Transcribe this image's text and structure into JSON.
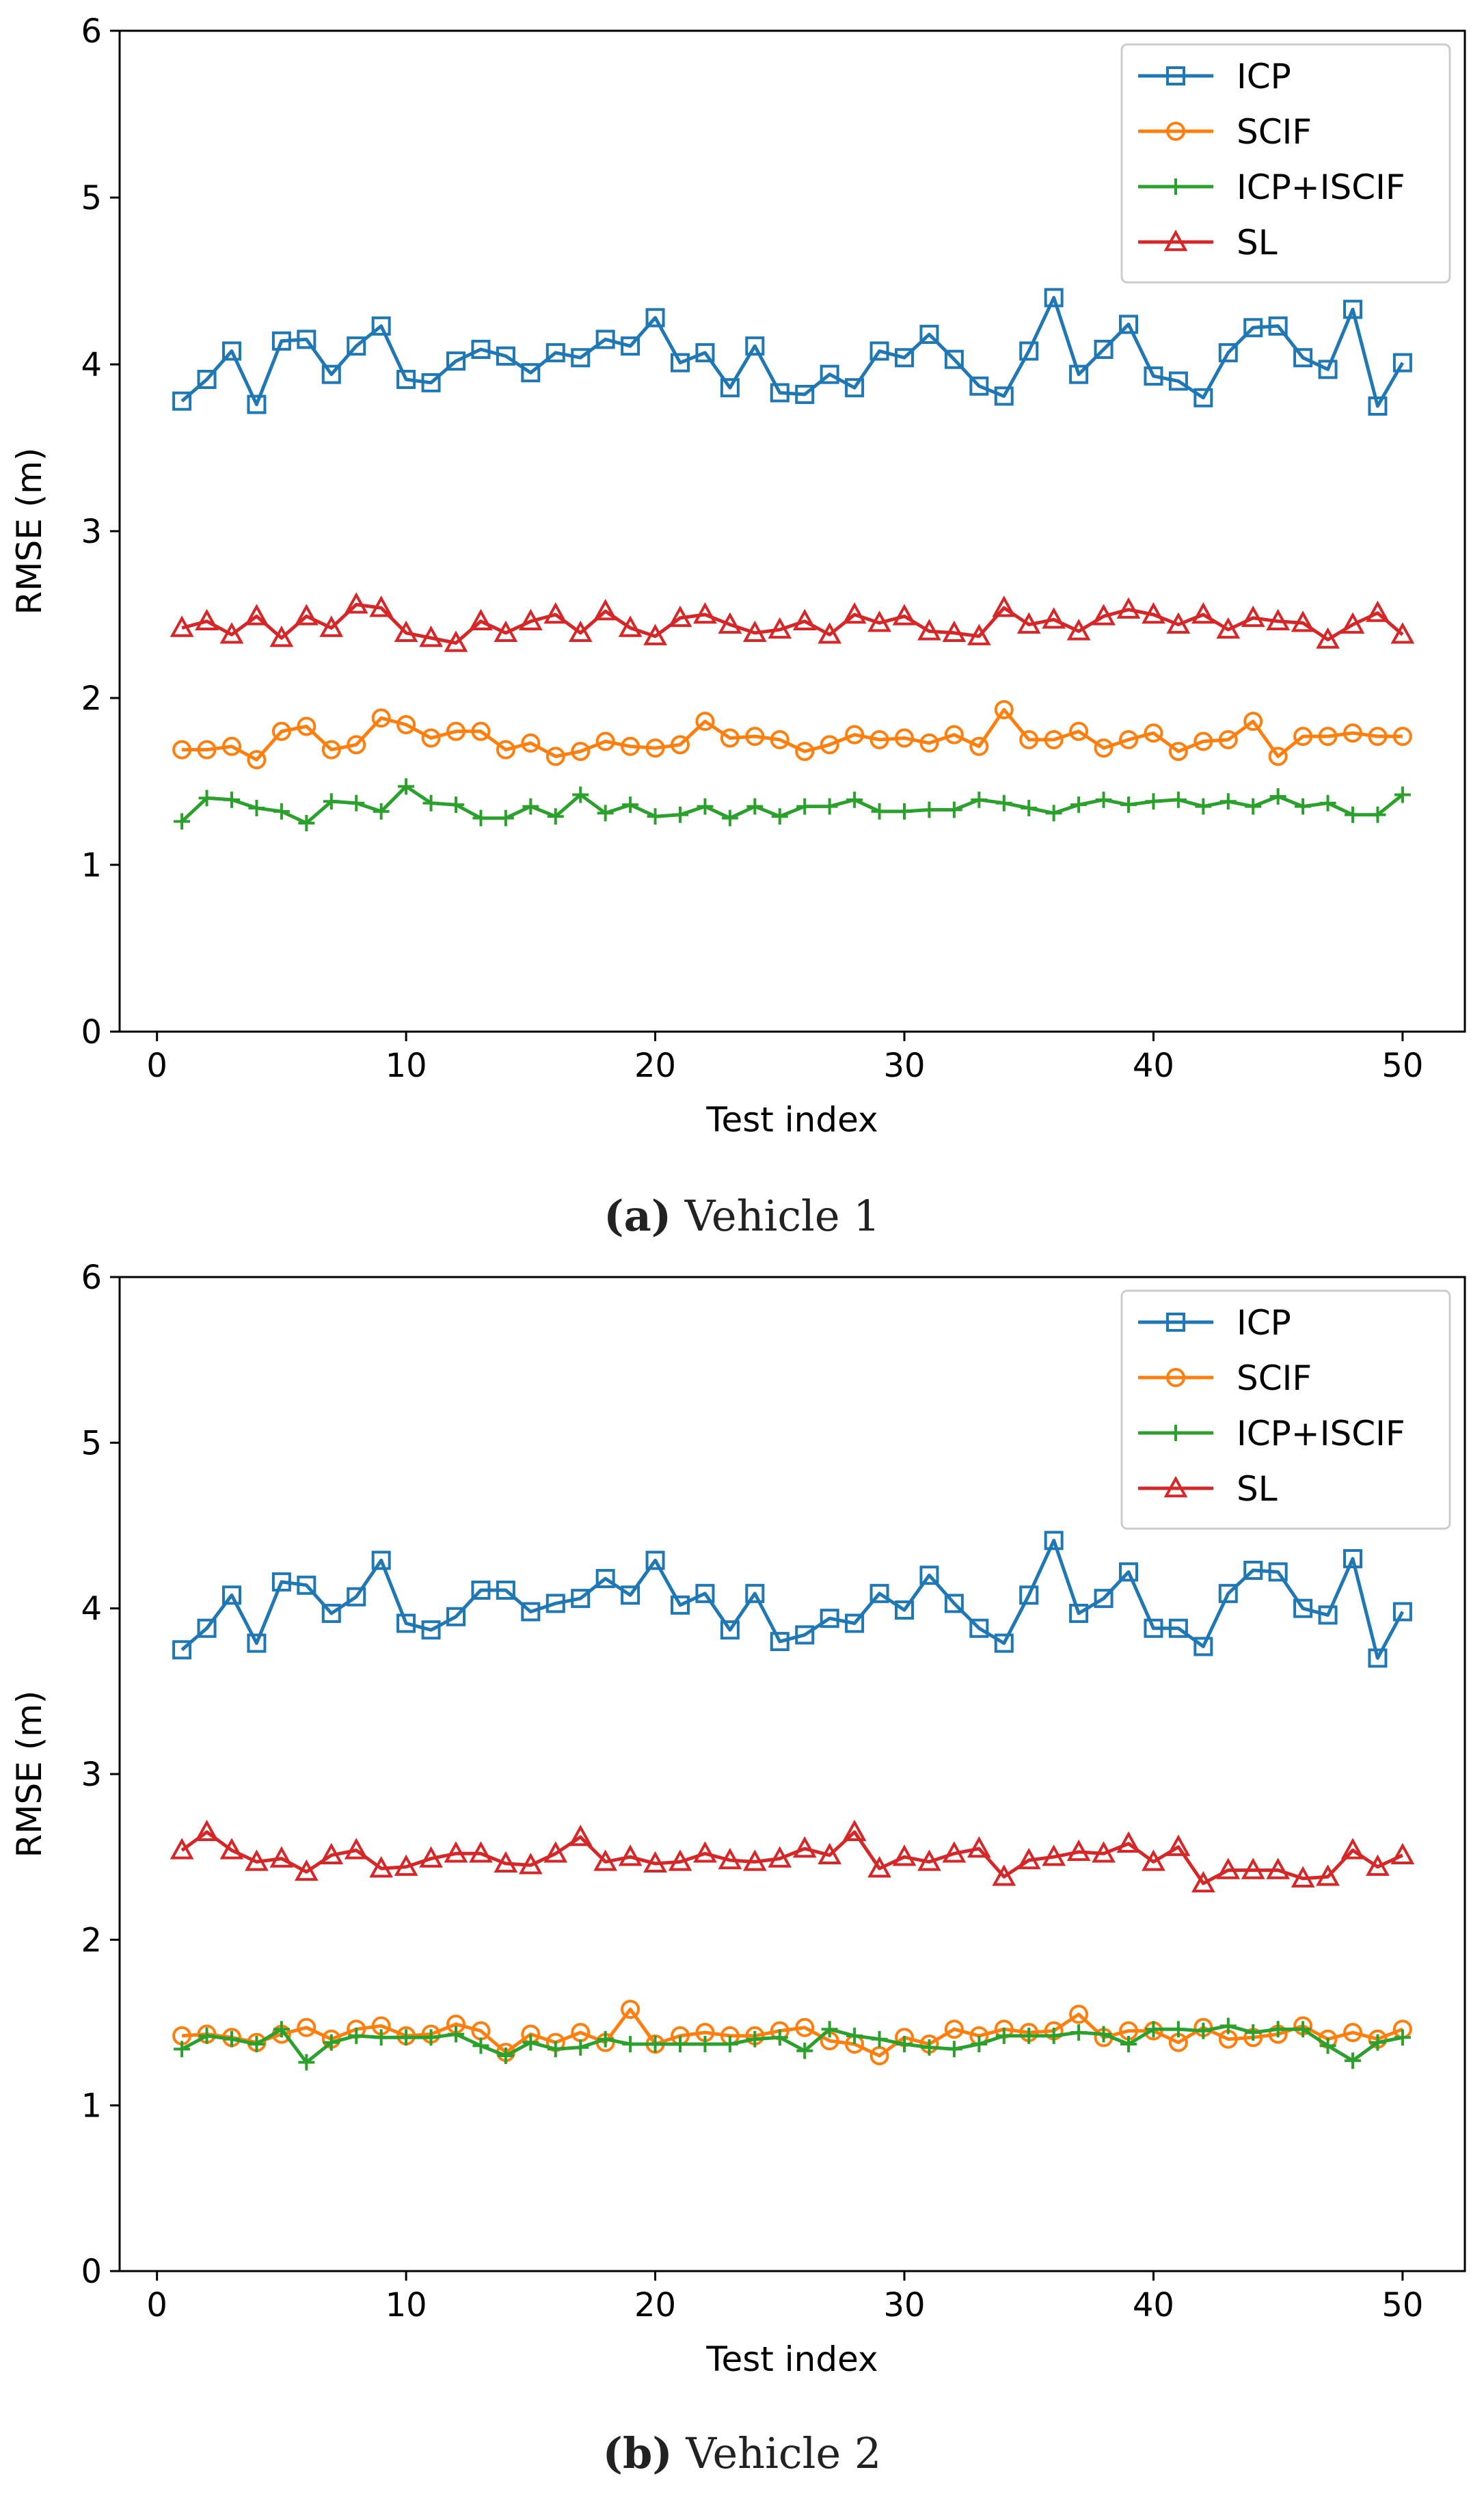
{
  "chart_data": [
    {
      "type": "line",
      "caption_letter": "(a)",
      "caption_text": " Vehicle 1",
      "xlabel": "Test index",
      "ylabel": "RMSE (m)",
      "xlim": [
        -1.5,
        52.5
      ],
      "ylim": [
        0,
        6
      ],
      "xticks": [
        0,
        10,
        20,
        30,
        40,
        50
      ],
      "yticks": [
        0,
        1,
        2,
        3,
        4,
        5,
        6
      ],
      "grid": false,
      "legend_position": "top-right",
      "x": [
        1,
        2,
        3,
        4,
        5,
        6,
        7,
        8,
        9,
        10,
        11,
        12,
        13,
        14,
        15,
        16,
        17,
        18,
        19,
        20,
        21,
        22,
        23,
        24,
        25,
        26,
        27,
        28,
        29,
        30,
        31,
        32,
        33,
        34,
        35,
        36,
        37,
        38,
        39,
        40,
        41,
        42,
        43,
        44,
        45,
        46,
        47,
        48,
        49,
        50
      ],
      "series": [
        {
          "name": "ICP",
          "color": "#1f77b4",
          "marker": "square",
          "values": [
            3.78,
            3.91,
            4.08,
            3.76,
            4.14,
            4.15,
            3.94,
            4.11,
            4.23,
            3.91,
            3.89,
            4.02,
            4.09,
            4.05,
            3.95,
            4.07,
            4.04,
            4.15,
            4.11,
            4.28,
            4.01,
            4.07,
            3.86,
            4.11,
            3.83,
            3.82,
            3.94,
            3.86,
            4.08,
            4.04,
            4.18,
            4.03,
            3.87,
            3.81,
            4.08,
            4.4,
            3.94,
            4.09,
            4.24,
            3.93,
            3.9,
            3.8,
            4.07,
            4.22,
            4.23,
            4.04,
            3.97,
            4.33,
            3.75,
            4.01
          ]
        },
        {
          "name": "SCIF",
          "color": "#ff7f0e",
          "marker": "circle",
          "values": [
            1.69,
            1.69,
            1.71,
            1.63,
            1.8,
            1.83,
            1.69,
            1.72,
            1.88,
            1.84,
            1.76,
            1.8,
            1.8,
            1.69,
            1.73,
            1.65,
            1.68,
            1.74,
            1.71,
            1.7,
            1.72,
            1.86,
            1.76,
            1.77,
            1.75,
            1.68,
            1.72,
            1.78,
            1.75,
            1.76,
            1.73,
            1.78,
            1.71,
            1.93,
            1.75,
            1.75,
            1.8,
            1.7,
            1.75,
            1.79,
            1.68,
            1.74,
            1.75,
            1.86,
            1.65,
            1.77,
            1.77,
            1.79,
            1.77,
            1.77
          ]
        },
        {
          "name": "ICP+ISCIF",
          "color": "#2ca02c",
          "marker": "plus",
          "values": [
            1.26,
            1.4,
            1.39,
            1.34,
            1.32,
            1.25,
            1.38,
            1.37,
            1.32,
            1.47,
            1.37,
            1.36,
            1.28,
            1.28,
            1.35,
            1.29,
            1.42,
            1.31,
            1.36,
            1.29,
            1.3,
            1.35,
            1.28,
            1.35,
            1.29,
            1.35,
            1.35,
            1.39,
            1.32,
            1.32,
            1.33,
            1.33,
            1.39,
            1.37,
            1.34,
            1.31,
            1.36,
            1.39,
            1.36,
            1.38,
            1.39,
            1.35,
            1.38,
            1.35,
            1.41,
            1.35,
            1.37,
            1.3,
            1.3,
            1.42
          ]
        },
        {
          "name": "SL",
          "color": "#d62728",
          "marker": "triangle",
          "values": [
            2.42,
            2.46,
            2.38,
            2.49,
            2.36,
            2.49,
            2.42,
            2.56,
            2.54,
            2.39,
            2.36,
            2.33,
            2.46,
            2.39,
            2.46,
            2.5,
            2.39,
            2.52,
            2.42,
            2.37,
            2.48,
            2.5,
            2.44,
            2.39,
            2.41,
            2.46,
            2.38,
            2.5,
            2.45,
            2.49,
            2.4,
            2.39,
            2.37,
            2.54,
            2.44,
            2.47,
            2.4,
            2.49,
            2.53,
            2.5,
            2.44,
            2.5,
            2.41,
            2.48,
            2.46,
            2.45,
            2.35,
            2.44,
            2.51,
            2.38
          ]
        }
      ]
    },
    {
      "type": "line",
      "caption_letter": "(b)",
      "caption_text": " Vehicle 2",
      "xlabel": "Test index",
      "ylabel": "RMSE (m)",
      "xlim": [
        -1.5,
        52.5
      ],
      "ylim": [
        0,
        6
      ],
      "xticks": [
        0,
        10,
        20,
        30,
        40,
        50
      ],
      "yticks": [
        0,
        1,
        2,
        3,
        4,
        5,
        6
      ],
      "grid": false,
      "legend_position": "top-right",
      "x": [
        1,
        2,
        3,
        4,
        5,
        6,
        7,
        8,
        9,
        10,
        11,
        12,
        13,
        14,
        15,
        16,
        17,
        18,
        19,
        20,
        21,
        22,
        23,
        24,
        25,
        26,
        27,
        28,
        29,
        30,
        31,
        32,
        33,
        34,
        35,
        36,
        37,
        38,
        39,
        40,
        41,
        42,
        43,
        44,
        45,
        46,
        47,
        48,
        49,
        50
      ],
      "series": [
        {
          "name": "ICP",
          "color": "#1f77b4",
          "marker": "square",
          "values": [
            3.75,
            3.88,
            4.08,
            3.79,
            4.16,
            4.14,
            3.97,
            4.07,
            4.29,
            3.91,
            3.87,
            3.95,
            4.11,
            4.11,
            3.98,
            4.03,
            4.06,
            4.18,
            4.08,
            4.29,
            4.02,
            4.09,
            3.87,
            4.09,
            3.8,
            3.84,
            3.94,
            3.91,
            4.09,
            3.99,
            4.2,
            4.03,
            3.88,
            3.79,
            4.08,
            4.41,
            3.97,
            4.06,
            4.22,
            3.88,
            3.88,
            3.77,
            4.09,
            4.23,
            4.22,
            4.0,
            3.96,
            4.3,
            3.7,
            3.98
          ]
        },
        {
          "name": "SCIF",
          "color": "#ff7f0e",
          "marker": "circle",
          "values": [
            1.42,
            1.43,
            1.41,
            1.38,
            1.43,
            1.47,
            1.4,
            1.46,
            1.48,
            1.42,
            1.43,
            1.49,
            1.45,
            1.32,
            1.43,
            1.38,
            1.44,
            1.38,
            1.58,
            1.37,
            1.42,
            1.44,
            1.42,
            1.42,
            1.45,
            1.47,
            1.39,
            1.37,
            1.3,
            1.41,
            1.37,
            1.46,
            1.42,
            1.46,
            1.44,
            1.45,
            1.55,
            1.41,
            1.45,
            1.45,
            1.38,
            1.47,
            1.4,
            1.41,
            1.43,
            1.48,
            1.4,
            1.44,
            1.4,
            1.46
          ]
        },
        {
          "name": "ICP+ISCIF",
          "color": "#2ca02c",
          "marker": "plus",
          "values": [
            1.34,
            1.42,
            1.4,
            1.37,
            1.46,
            1.26,
            1.38,
            1.42,
            1.41,
            1.41,
            1.41,
            1.43,
            1.36,
            1.3,
            1.38,
            1.34,
            1.35,
            1.4,
            1.37,
            1.37,
            1.37,
            1.37,
            1.37,
            1.4,
            1.41,
            1.33,
            1.46,
            1.42,
            1.4,
            1.37,
            1.35,
            1.34,
            1.37,
            1.42,
            1.42,
            1.42,
            1.44,
            1.43,
            1.37,
            1.46,
            1.46,
            1.45,
            1.48,
            1.44,
            1.46,
            1.46,
            1.36,
            1.27,
            1.38,
            1.41
          ]
        },
        {
          "name": "SL",
          "color": "#d62728",
          "marker": "triangle",
          "values": [
            2.54,
            2.65,
            2.54,
            2.47,
            2.49,
            2.41,
            2.51,
            2.54,
            2.43,
            2.44,
            2.49,
            2.52,
            2.52,
            2.46,
            2.45,
            2.52,
            2.62,
            2.47,
            2.5,
            2.46,
            2.47,
            2.52,
            2.48,
            2.47,
            2.49,
            2.55,
            2.51,
            2.65,
            2.43,
            2.5,
            2.47,
            2.52,
            2.55,
            2.38,
            2.48,
            2.5,
            2.53,
            2.52,
            2.58,
            2.47,
            2.56,
            2.34,
            2.42,
            2.42,
            2.42,
            2.37,
            2.38,
            2.54,
            2.44,
            2.51
          ]
        }
      ]
    }
  ]
}
